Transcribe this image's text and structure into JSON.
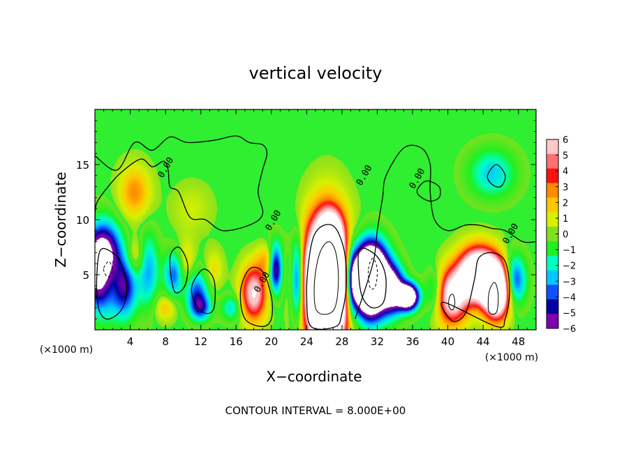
{
  "chart_data": {
    "type": "heatmap",
    "title": "vertical velocity",
    "xlabel": "X−coordinate",
    "ylabel": "Z−coordinate",
    "x_unit": "(×1000 m)",
    "y_unit": "(×1000 m)",
    "xlim": [
      0,
      50
    ],
    "ylim": [
      0,
      20
    ],
    "x_ticks": [
      4,
      8,
      12,
      16,
      20,
      24,
      28,
      32,
      36,
      40,
      44,
      48
    ],
    "x_tick_labels": [
      "4",
      "8",
      "12",
      "16",
      "20",
      "24",
      "28",
      "32",
      "36",
      "40",
      "44",
      "48"
    ],
    "y_ticks": [
      5,
      10,
      15
    ],
    "y_tick_labels": [
      "5",
      "10",
      "15"
    ],
    "color_scale": {
      "levels": [
        6,
        5,
        4,
        3,
        2,
        1,
        0,
        -1,
        -2,
        -3,
        -4,
        -5,
        -6
      ],
      "level_labels": [
        "6",
        "5",
        "4",
        "3",
        "2",
        "1",
        "0",
        "−1",
        "−2",
        "−3",
        "−4",
        "−5",
        "−6"
      ],
      "colors": [
        "#ffc8c8",
        "#ff7070",
        "#ff1010",
        "#ff8c00",
        "#ffc800",
        "#d8f000",
        "#80e020",
        "#20f020",
        "#00ffc0",
        "#00c8ff",
        "#1050ff",
        "#0000a0",
        "#8000b0"
      ],
      "saturated_color": "#ffffff"
    },
    "contour_label": "0.00",
    "contour_interval_text": "CONTOUR INTERVAL = 8.000E+00",
    "background_color": "#30ee30",
    "cells": [
      {
        "x": 1.0,
        "z": 5.5,
        "sx": 1.3,
        "sz": 2.2,
        "w": -20
      },
      {
        "x": 1.5,
        "z": 5.0,
        "sx": 1.2,
        "sz": 1.8,
        "w": 12
      },
      {
        "x": 3.3,
        "z": 4.2,
        "sx": 1.0,
        "sz": 2.0,
        "w": -6
      },
      {
        "x": 4.5,
        "z": 6.5,
        "sx": 0.9,
        "sz": 1.3,
        "w": 2.5
      },
      {
        "x": 4.5,
        "z": 12.5,
        "sx": 1.2,
        "sz": 1.6,
        "w": 3.0
      },
      {
        "x": 6.0,
        "z": 5.5,
        "sx": 0.8,
        "sz": 2.2,
        "w": -3.5
      },
      {
        "x": 8.0,
        "z": 2.0,
        "sx": 0.8,
        "sz": 0.8,
        "w": 2.0
      },
      {
        "x": 9.0,
        "z": 5.0,
        "sx": 0.8,
        "sz": 1.4,
        "w": -4.0
      },
      {
        "x": 10.3,
        "z": 5.8,
        "sx": 0.7,
        "sz": 1.6,
        "w": 2.0
      },
      {
        "x": 11.0,
        "z": 11.0,
        "sx": 1.5,
        "sz": 1.5,
        "w": 0.9
      },
      {
        "x": 11.5,
        "z": 3.5,
        "sx": 0.9,
        "sz": 1.3,
        "w": -4.0
      },
      {
        "x": 12.0,
        "z": 2.0,
        "sx": 0.8,
        "sz": 0.8,
        "w": -4.0
      },
      {
        "x": 13.5,
        "z": 5.5,
        "sx": 0.7,
        "sz": 1.2,
        "w": 1.5
      },
      {
        "x": 15.5,
        "z": 2.0,
        "sx": 0.8,
        "sz": 0.8,
        "w": -2.5
      },
      {
        "x": 18.0,
        "z": 3.3,
        "sx": 1.0,
        "sz": 1.7,
        "w": 7.0
      },
      {
        "x": 20.5,
        "z": 5.5,
        "sx": 0.5,
        "sz": 1.5,
        "w": -6.0
      },
      {
        "x": 19.3,
        "z": 6.3,
        "sx": 0.7,
        "sz": 1.0,
        "w": 2.0
      },
      {
        "x": 23.0,
        "z": 4.5,
        "sx": 0.5,
        "sz": 2.6,
        "w": -6.0
      },
      {
        "x": 26.3,
        "z": 4.3,
        "sx": 1.6,
        "sz": 3.6,
        "w": 26.0
      },
      {
        "x": 26.7,
        "z": 9.0,
        "sx": 0.8,
        "sz": 1.2,
        "w": 5.0
      },
      {
        "x": 29.0,
        "z": 4.5,
        "sx": 0.6,
        "sz": 2.4,
        "w": -6.0
      },
      {
        "x": 31.2,
        "z": 4.5,
        "sx": 1.3,
        "sz": 2.0,
        "w": -24.0
      },
      {
        "x": 33.8,
        "z": 3.6,
        "sx": 0.9,
        "sz": 1.4,
        "w": -8.0
      },
      {
        "x": 35.5,
        "z": 3.0,
        "sx": 0.8,
        "sz": 0.8,
        "w": -12.0
      },
      {
        "x": 38.5,
        "z": 3.5,
        "sx": 0.7,
        "sz": 1.3,
        "w": -2.5
      },
      {
        "x": 40.5,
        "z": 3.0,
        "sx": 1.2,
        "sz": 1.7,
        "w": 8.0
      },
      {
        "x": 43.5,
        "z": 5.0,
        "sx": 1.5,
        "sz": 1.6,
        "w": 14.0
      },
      {
        "x": 45.5,
        "z": 3.5,
        "sx": 1.0,
        "sz": 1.6,
        "w": 14.0
      },
      {
        "x": 47.5,
        "z": 4.5,
        "sx": 0.9,
        "sz": 1.5,
        "w": -5.0
      },
      {
        "x": 45.0,
        "z": 14.2,
        "sx": 1.8,
        "sz": 1.5,
        "w": -2.8
      },
      {
        "x": 22.0,
        "z": 8.0,
        "sx": 2.0,
        "sz": 0.8,
        "w": -0.4
      }
    ],
    "zero_contours": [
      [
        [
          0,
          15.8
        ],
        [
          2.5,
          14.5
        ],
        [
          4.5,
          17.0
        ],
        [
          6.5,
          16.3
        ],
        [
          8.5,
          17.5
        ],
        [
          10.5,
          17.0
        ],
        [
          13.5,
          17.2
        ],
        [
          16.0,
          17.6
        ],
        [
          17.5,
          17.0
        ],
        [
          19.0,
          16.8
        ],
        [
          19.5,
          16.0
        ],
        [
          19.0,
          14.5
        ],
        [
          18.5,
          12.5
        ],
        [
          19.0,
          10.5
        ],
        [
          17.5,
          9.5
        ],
        [
          14.5,
          9.0
        ],
        [
          12.5,
          10.0
        ],
        [
          10.8,
          10.2
        ],
        [
          9.5,
          12.5
        ],
        [
          8.5,
          13.0
        ],
        [
          8.3,
          14.5
        ],
        [
          7.8,
          15.3
        ],
        [
          6.5,
          14.8
        ],
        [
          5.2,
          15.5
        ],
        [
          3.0,
          14.3
        ],
        [
          1.5,
          13.0
        ],
        [
          0.2,
          11.5
        ],
        [
          0,
          10.0
        ]
      ],
      [
        [
          29.5,
          1.0
        ],
        [
          31.5,
          6.0
        ],
        [
          32.0,
          9.0
        ],
        [
          32.6,
          12.0
        ],
        [
          33.0,
          14.0
        ],
        [
          35.0,
          16.5
        ],
        [
          37.0,
          16.5
        ],
        [
          38.0,
          15.0
        ],
        [
          38.0,
          12.5
        ],
        [
          38.5,
          10.0
        ],
        [
          40.0,
          9.0
        ],
        [
          42.0,
          9.5
        ],
        [
          43.5,
          9.5
        ],
        [
          45.0,
          9.2
        ],
        [
          46.5,
          9.0
        ],
        [
          48.5,
          8.0
        ],
        [
          50,
          8.0
        ]
      ],
      [
        [
          24.5,
          0.3
        ],
        [
          24.0,
          3.0
        ],
        [
          24.2,
          6.0
        ],
        [
          24.8,
          8.5
        ],
        [
          26.0,
          9.5
        ],
        [
          27.3,
          9.2
        ],
        [
          28.3,
          7.0
        ],
        [
          28.5,
          4.0
        ],
        [
          28.0,
          1.5
        ],
        [
          27.3,
          0.3
        ]
      ],
      [
        [
          0.6,
          7.2
        ],
        [
          2.0,
          7.0
        ],
        [
          3.0,
          6.0
        ],
        [
          3.6,
          4.0
        ],
        [
          3.3,
          2.3
        ],
        [
          2.4,
          1.3
        ],
        [
          1.2,
          1.0
        ],
        [
          0.4,
          2.0
        ],
        [
          0.2,
          4.5
        ]
      ],
      [
        [
          30.0,
          7.3
        ],
        [
          31.5,
          7.0
        ],
        [
          32.5,
          6.0
        ],
        [
          33.0,
          4.5
        ],
        [
          32.7,
          2.5
        ],
        [
          31.4,
          2.0
        ],
        [
          30.3,
          3.0
        ],
        [
          29.9,
          5.0
        ]
      ],
      [
        [
          39.5,
          2.5
        ],
        [
          40.5,
          0.8
        ],
        [
          42.0,
          1.5
        ],
        [
          43.0,
          4.5
        ],
        [
          43.5,
          6.5
        ],
        [
          45.0,
          7.0
        ],
        [
          46.5,
          6.2
        ],
        [
          47.0,
          3.5
        ],
        [
          46.5,
          1.0
        ],
        [
          45.5,
          0.3
        ]
      ],
      [
        [
          16.5,
          3.5
        ],
        [
          17.5,
          5.5
        ],
        [
          19.0,
          5.3
        ],
        [
          20.0,
          3.0
        ],
        [
          20.0,
          1.0
        ],
        [
          19.0,
          0.3
        ],
        [
          17.0,
          1.0
        ]
      ],
      [
        [
          8.5,
          6.5
        ],
        [
          9.5,
          7.5
        ],
        [
          10.5,
          6.0
        ],
        [
          10.2,
          4.0
        ],
        [
          9.0,
          3.5
        ]
      ],
      [
        [
          11.0,
          4.0
        ],
        [
          12.3,
          5.5
        ],
        [
          13.5,
          4.5
        ],
        [
          13.5,
          2.0
        ],
        [
          12.5,
          1.5
        ],
        [
          11.3,
          2.5
        ]
      ],
      [
        [
          44.5,
          14.0
        ],
        [
          45.5,
          15.0
        ],
        [
          46.5,
          14.0
        ],
        [
          46.0,
          13.0
        ],
        [
          45.0,
          13.2
        ]
      ],
      [
        [
          36.5,
          12.5
        ],
        [
          37.5,
          13.5
        ],
        [
          39.0,
          13.0
        ],
        [
          39.0,
          12.0
        ],
        [
          37.8,
          11.7
        ]
      ]
    ],
    "inner_contours": [
      [
        [
          25.0,
          2.0
        ],
        [
          24.9,
          4.5
        ],
        [
          25.5,
          7.0
        ],
        [
          26.5,
          8.0
        ],
        [
          27.3,
          7.0
        ],
        [
          27.6,
          4.5
        ],
        [
          27.2,
          2.0
        ],
        [
          26.0,
          1.4
        ]
      ],
      [
        [
          44.6,
          1.8
        ],
        [
          44.7,
          3.5
        ],
        [
          45.3,
          4.3
        ],
        [
          45.7,
          3.3
        ],
        [
          45.6,
          1.8
        ],
        [
          45.1,
          1.4
        ]
      ],
      [
        [
          40.1,
          2.2
        ],
        [
          40.2,
          3.0
        ],
        [
          40.6,
          3.2
        ],
        [
          40.8,
          2.4
        ],
        [
          40.5,
          1.8
        ]
      ]
    ],
    "dashed_contours": [
      [
        [
          1.0,
          5.6
        ],
        [
          1.6,
          6.2
        ],
        [
          2.0,
          5.4
        ],
        [
          1.6,
          4.8
        ],
        [
          1.2,
          5.0
        ]
      ],
      [
        [
          31.0,
          5.5
        ],
        [
          31.5,
          6.5
        ],
        [
          32.0,
          5.5
        ],
        [
          31.8,
          4.0
        ],
        [
          31.2,
          3.8
        ]
      ]
    ],
    "contour_label_positions": [
      {
        "x": 8.3,
        "z": 14.6
      },
      {
        "x": 20.5,
        "z": 9.8
      },
      {
        "x": 19.2,
        "z": 4.2
      },
      {
        "x": 30.8,
        "z": 13.9
      },
      {
        "x": 36.8,
        "z": 13.6
      },
      {
        "x": 47.4,
        "z": 8.6
      }
    ]
  }
}
